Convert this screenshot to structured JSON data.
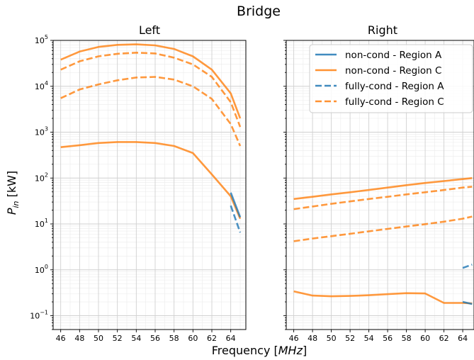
{
  "colors": {
    "region_a": "#1f77b4",
    "region_c": "#ff7f0e"
  },
  "chart_data": {
    "type": "line",
    "title": "Bridge",
    "xlabel": "Frequency [MHz]",
    "ylabel": "P_in [kW]",
    "yscale": "log",
    "ylim": [
      0.05,
      100000
    ],
    "x_ticks": [
      46,
      48,
      50,
      52,
      54,
      56,
      58,
      60,
      62,
      64
    ],
    "y_tick_labels": [
      {
        "base": "10",
        "exp": "5",
        "value": 100000
      },
      {
        "base": "10",
        "exp": "4",
        "value": 10000
      },
      {
        "base": "10",
        "exp": "3",
        "value": 1000
      },
      {
        "base": "10",
        "exp": "2",
        "value": 100
      },
      {
        "base": "10",
        "exp": "1",
        "value": 10
      },
      {
        "base": "10",
        "exp": "0",
        "value": 1
      },
      {
        "base": "10",
        "exp": "−1",
        "value": 0.1
      }
    ],
    "legend": {
      "placement": "top-right",
      "entries": [
        {
          "label": "non-cond - Region A",
          "color": "region_a",
          "style": "solid"
        },
        {
          "label": "non-cond - Region C",
          "color": "region_c",
          "style": "solid"
        },
        {
          "label": "fully-cond - Region A",
          "color": "region_a",
          "style": "dashed"
        },
        {
          "label": "fully-cond - Region C",
          "color": "region_c",
          "style": "dashed"
        }
      ]
    },
    "panels": [
      {
        "title": "Left",
        "xlim": [
          45.2,
          65.6
        ],
        "series": [
          {
            "color": "region_c",
            "style": "solid",
            "x": [
              46,
              48,
              50,
              52,
              54,
              56,
              58,
              60,
              62,
              64,
              65
            ],
            "y": [
              38000,
              57000,
              72000,
              80000,
              82000,
              78000,
              65000,
              45000,
              23000,
              7000,
              2000
            ]
          },
          {
            "color": "region_c",
            "style": "dashed",
            "x": [
              46,
              48,
              50,
              52,
              54,
              56,
              58,
              60,
              62,
              64,
              65
            ],
            "y": [
              23000,
              35000,
              45000,
              51000,
              54000,
              52000,
              42000,
              30000,
              16000,
              4500,
              1300
            ]
          },
          {
            "color": "region_c",
            "style": "dashed",
            "x": [
              46,
              48,
              50,
              52,
              54,
              56,
              58,
              60,
              62,
              64,
              65
            ],
            "y": [
              5500,
              8500,
              11000,
              13500,
              15500,
              16000,
              14000,
              10000,
              5300,
              1500,
              500
            ]
          },
          {
            "color": "region_c",
            "style": "solid",
            "x": [
              46,
              48,
              50,
              52,
              54,
              56,
              58,
              60,
              62,
              64,
              65
            ],
            "y": [
              470,
              520,
              580,
              610,
              610,
              580,
              500,
              350,
              120,
              40,
              13
            ]
          },
          {
            "color": "region_a",
            "style": "solid",
            "x": [
              64,
              65
            ],
            "y": [
              48,
              14
            ]
          },
          {
            "color": "region_a",
            "style": "dashed",
            "x": [
              64,
              65
            ],
            "y": [
              25,
              6.5
            ]
          }
        ]
      },
      {
        "title": "Right",
        "xlim": [
          45.2,
          65.2
        ],
        "series": [
          {
            "color": "region_c",
            "style": "solid",
            "x": [
              46,
              48,
              50,
              52,
              54,
              56,
              58,
              60,
              62,
              64,
              65
            ],
            "y": [
              35,
              39,
              44,
              49,
              55,
              62,
              70,
              78,
              86,
              95,
              100
            ]
          },
          {
            "color": "region_c",
            "style": "dashed",
            "x": [
              46,
              48,
              50,
              52,
              54,
              56,
              58,
              60,
              62,
              64,
              65
            ],
            "y": [
              21,
              24,
              27.5,
              31,
              35,
              39,
              44,
              49,
              55,
              62,
              65
            ]
          },
          {
            "color": "region_c",
            "style": "dashed",
            "x": [
              46,
              48,
              50,
              52,
              54,
              56,
              58,
              60,
              62,
              64,
              65
            ],
            "y": [
              4.2,
              4.8,
              5.4,
              6.1,
              6.9,
              7.8,
              8.8,
              9.9,
              11.2,
              13,
              14.5
            ]
          },
          {
            "color": "region_c",
            "style": "solid",
            "x": [
              46,
              48,
              50,
              52,
              54,
              56,
              58,
              60,
              62,
              64,
              65
            ],
            "y": [
              0.34,
              0.275,
              0.265,
              0.27,
              0.28,
              0.295,
              0.31,
              0.305,
              0.19,
              0.19,
              0.185
            ]
          },
          {
            "color": "region_a",
            "style": "solid",
            "x": [
              64,
              65
            ],
            "y": [
              0.2,
              0.18
            ]
          },
          {
            "color": "region_a",
            "style": "dashed",
            "x": [
              64,
              65
            ],
            "y": [
              1.1,
              1.3
            ]
          }
        ]
      }
    ]
  }
}
